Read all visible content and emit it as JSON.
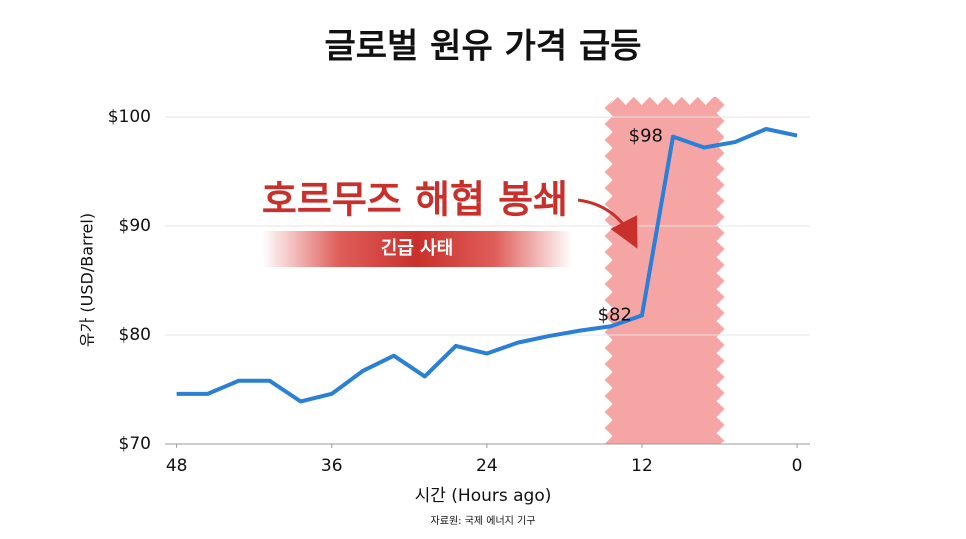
{
  "chart_data": {
    "type": "line",
    "title": "글로벌 원유 가격 급등",
    "x_label": "시간 (Hours ago)",
    "y_label": "유가 (USD/Barrel)",
    "source": "자료원: 국제 에너지 기구",
    "annotation": "호르무즈 해협 봉쇄",
    "badge": "긴급 사태",
    "x": [
      48,
      45.6,
      43.2,
      40.8,
      38.4,
      36,
      33.6,
      31.2,
      28.8,
      26.4,
      24,
      21.6,
      19.2,
      16.8,
      14.4,
      12,
      9.6,
      7.2,
      4.8,
      2.4,
      0
    ],
    "series": [
      {
        "color": "#2a7fd6",
        "values": [
          74.6,
          74.6,
          75.8,
          75.8,
          73.9,
          74.6,
          76.7,
          78.1,
          76.2,
          79.0,
          78.3,
          79.3,
          79.9,
          80.4,
          80.8,
          81.8,
          98.2,
          97.2,
          97.7,
          98.9,
          98.3
        ],
        "value_labels": [
          null,
          null,
          null,
          null,
          null,
          null,
          null,
          null,
          null,
          null,
          null,
          null,
          null,
          null,
          null,
          "$82",
          "$98",
          null,
          null,
          null,
          null
        ]
      }
    ],
    "highlight": {
      "x": [
        14.5,
        6
      ],
      "color": "#f6a5a5"
    },
    "xlim": [
      48.9,
      -1
    ],
    "xticks": [
      48,
      36,
      24,
      12,
      0
    ],
    "ylim": [
      70,
      100
    ],
    "yticks": [
      {
        "value": 70,
        "label": "$70"
      },
      {
        "value": 80,
        "label": "$80"
      },
      {
        "value": 90,
        "label": "$90"
      },
      {
        "value": 100,
        "label": "$100"
      }
    ],
    "grid": true
  }
}
